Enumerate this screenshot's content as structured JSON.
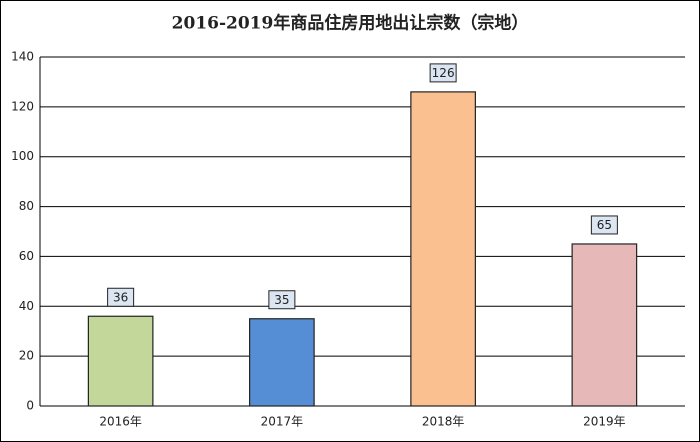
{
  "chart_data": {
    "type": "bar",
    "title": "2016-2019年商品住房用地出让宗数（宗地）",
    "categories": [
      "2016年",
      "2017年",
      "2018年",
      "2019年"
    ],
    "values": [
      36,
      35,
      126,
      65
    ],
    "colors": [
      "#c4d79b",
      "#558ed5",
      "#fac090",
      "#e6b9b8"
    ],
    "ylim": [
      0,
      140
    ],
    "yticks": [
      0,
      20,
      40,
      60,
      80,
      100,
      120,
      140
    ],
    "grid": true
  }
}
